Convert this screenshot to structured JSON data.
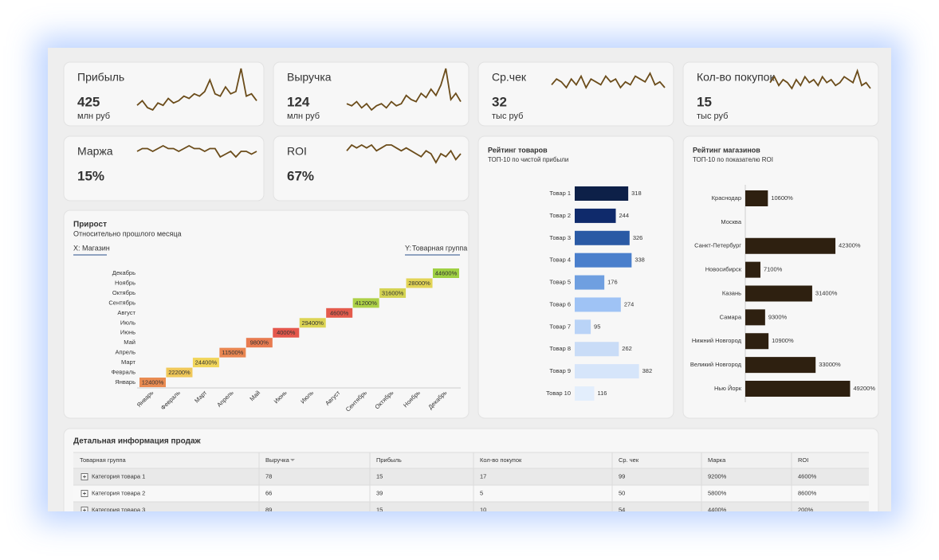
{
  "kpis": [
    {
      "title": "Прибыль",
      "value": 425,
      "unit": "млн руб",
      "sparkline": [
        4,
        6,
        3,
        2,
        5,
        4,
        7,
        5,
        6,
        8,
        7,
        9,
        8,
        10,
        15,
        9,
        8,
        12,
        9,
        10,
        20,
        8,
        9,
        6
      ]
    },
    {
      "title": "Выручка",
      "value": 124,
      "unit": "млн руб",
      "sparkline": [
        5,
        4,
        6,
        3,
        5,
        2,
        4,
        5,
        3,
        6,
        4,
        5,
        9,
        7,
        6,
        10,
        8,
        12,
        9,
        14,
        22,
        7,
        10,
        6
      ]
    },
    {
      "title": "Ср.чек",
      "value": 32,
      "unit": "тыс руб",
      "sparkline": [
        6,
        8,
        7,
        5,
        8,
        6,
        9,
        5,
        8,
        7,
        6,
        9,
        7,
        8,
        5,
        7,
        6,
        9,
        8,
        7,
        10,
        6,
        7,
        5
      ]
    },
    {
      "title": "Кол-во покупок",
      "value": 15,
      "unit": "тыс руб",
      "sparkline": [
        7,
        9,
        6,
        8,
        7,
        5,
        8,
        6,
        9,
        7,
        8,
        6,
        9,
        7,
        8,
        6,
        7,
        9,
        8,
        7,
        11,
        6,
        7,
        5
      ]
    },
    {
      "title": "Маржа",
      "value": "15%",
      "sparkline": [
        8,
        9,
        9,
        8,
        9,
        10,
        9,
        9,
        8,
        9,
        10,
        9,
        9,
        8,
        9,
        9,
        6,
        7,
        8,
        6,
        8,
        8,
        7,
        8
      ]
    },
    {
      "title": "ROI",
      "value": "67%",
      "sparkline": [
        7,
        9,
        8,
        9,
        8,
        9,
        7,
        8,
        9,
        9,
        8,
        7,
        8,
        7,
        6,
        5,
        7,
        6,
        3,
        6,
        5,
        7,
        4,
        6
      ]
    }
  ],
  "chart_data": [
    {
      "type": "heatmap",
      "title": "Прирост",
      "subtitle": "Относительно прошлого месяца",
      "x_selector": {
        "label": "X:",
        "value": "Магазин"
      },
      "y_selector": {
        "label": "Y:",
        "value": "Товарная группа"
      },
      "x_categories": [
        "Январь",
        "Февраль",
        "Март",
        "Апрель",
        "Май",
        "Июнь",
        "Июль",
        "Август",
        "Сентябрь",
        "Октябрь",
        "Ноябрь",
        "Декабрь"
      ],
      "y_categories": [
        "Январь",
        "Февраль",
        "Март",
        "Апрель",
        "Май",
        "Июнь",
        "Июль",
        "Август",
        "Сентябрь",
        "Октябрь",
        "Ноябрь",
        "Декабрь"
      ],
      "values": [
        12400,
        22200,
        24400,
        11500,
        9800,
        4000,
        29400,
        4600,
        41200,
        31600,
        28000,
        44600
      ],
      "value_labels": [
        "12400%",
        "22200%",
        "24400%",
        "11500%",
        "9800%",
        "4000%",
        "29400%",
        "4600%",
        "41200%",
        "31600%",
        "28000%",
        "44600%"
      ],
      "color_scale": [
        "#e4574c",
        "#f1d55a",
        "#9fd043"
      ]
    },
    {
      "type": "bar",
      "orientation": "horizontal",
      "title": "Рейтинг товаров",
      "subtitle": "ТОП-10 по чистой прибыли",
      "categories": [
        "Товар 1",
        "Товар 2",
        "Товар 3",
        "Товар 4",
        "Товар  5",
        "Товар 6",
        "Товар 7",
        "Товар 8",
        "Товар 9",
        "Товар 10"
      ],
      "values": [
        318,
        244,
        326,
        338,
        176,
        274,
        95,
        262,
        382,
        116
      ],
      "colors": [
        "#0d2048",
        "#0f2a6b",
        "#2a5aa5",
        "#4a7fcc",
        "#6f9fe0",
        "#9fc3f5",
        "#b9d3f7",
        "#c9dcf7",
        "#d6e5fa",
        "#e3eefc"
      ],
      "xlim": [
        0,
        450
      ]
    },
    {
      "type": "bar",
      "orientation": "horizontal",
      "title": "Рейтинг магазинов",
      "subtitle": "ТОП-10 по показателю ROI",
      "categories": [
        "Краснодар",
        "Москва",
        "Санкт-Петербург",
        "Новосибирск",
        "Казань",
        "Самара",
        "Нижний Новгород",
        "Великий Новгород",
        "Нью Йорк"
      ],
      "values": [
        10600,
        null,
        42300,
        7100,
        31400,
        9300,
        10900,
        33000,
        49200
      ],
      "value_labels": [
        "10600%",
        null,
        "42300%",
        "7100%",
        "31400%",
        "9300%",
        "10900%",
        "33000%",
        "49200%"
      ],
      "color": "#2e2010",
      "xlim": [
        0,
        55000
      ]
    }
  ],
  "table": {
    "title": "Детальная информация продаж",
    "columns": [
      "Товарная группа",
      "Выручка",
      "Прибыль",
      "Кол-во покупок",
      "Ср. чек",
      "Марка",
      "ROI"
    ],
    "rows": [
      [
        "Категория товара 1",
        78,
        15,
        17,
        99,
        "9200%",
        "4600%"
      ],
      [
        "Категория товара 2",
        66,
        39,
        5,
        50,
        "5800%",
        "8600%"
      ],
      [
        "Категория товара 3",
        89,
        15,
        10,
        54,
        "4400%",
        "200%"
      ]
    ]
  }
}
